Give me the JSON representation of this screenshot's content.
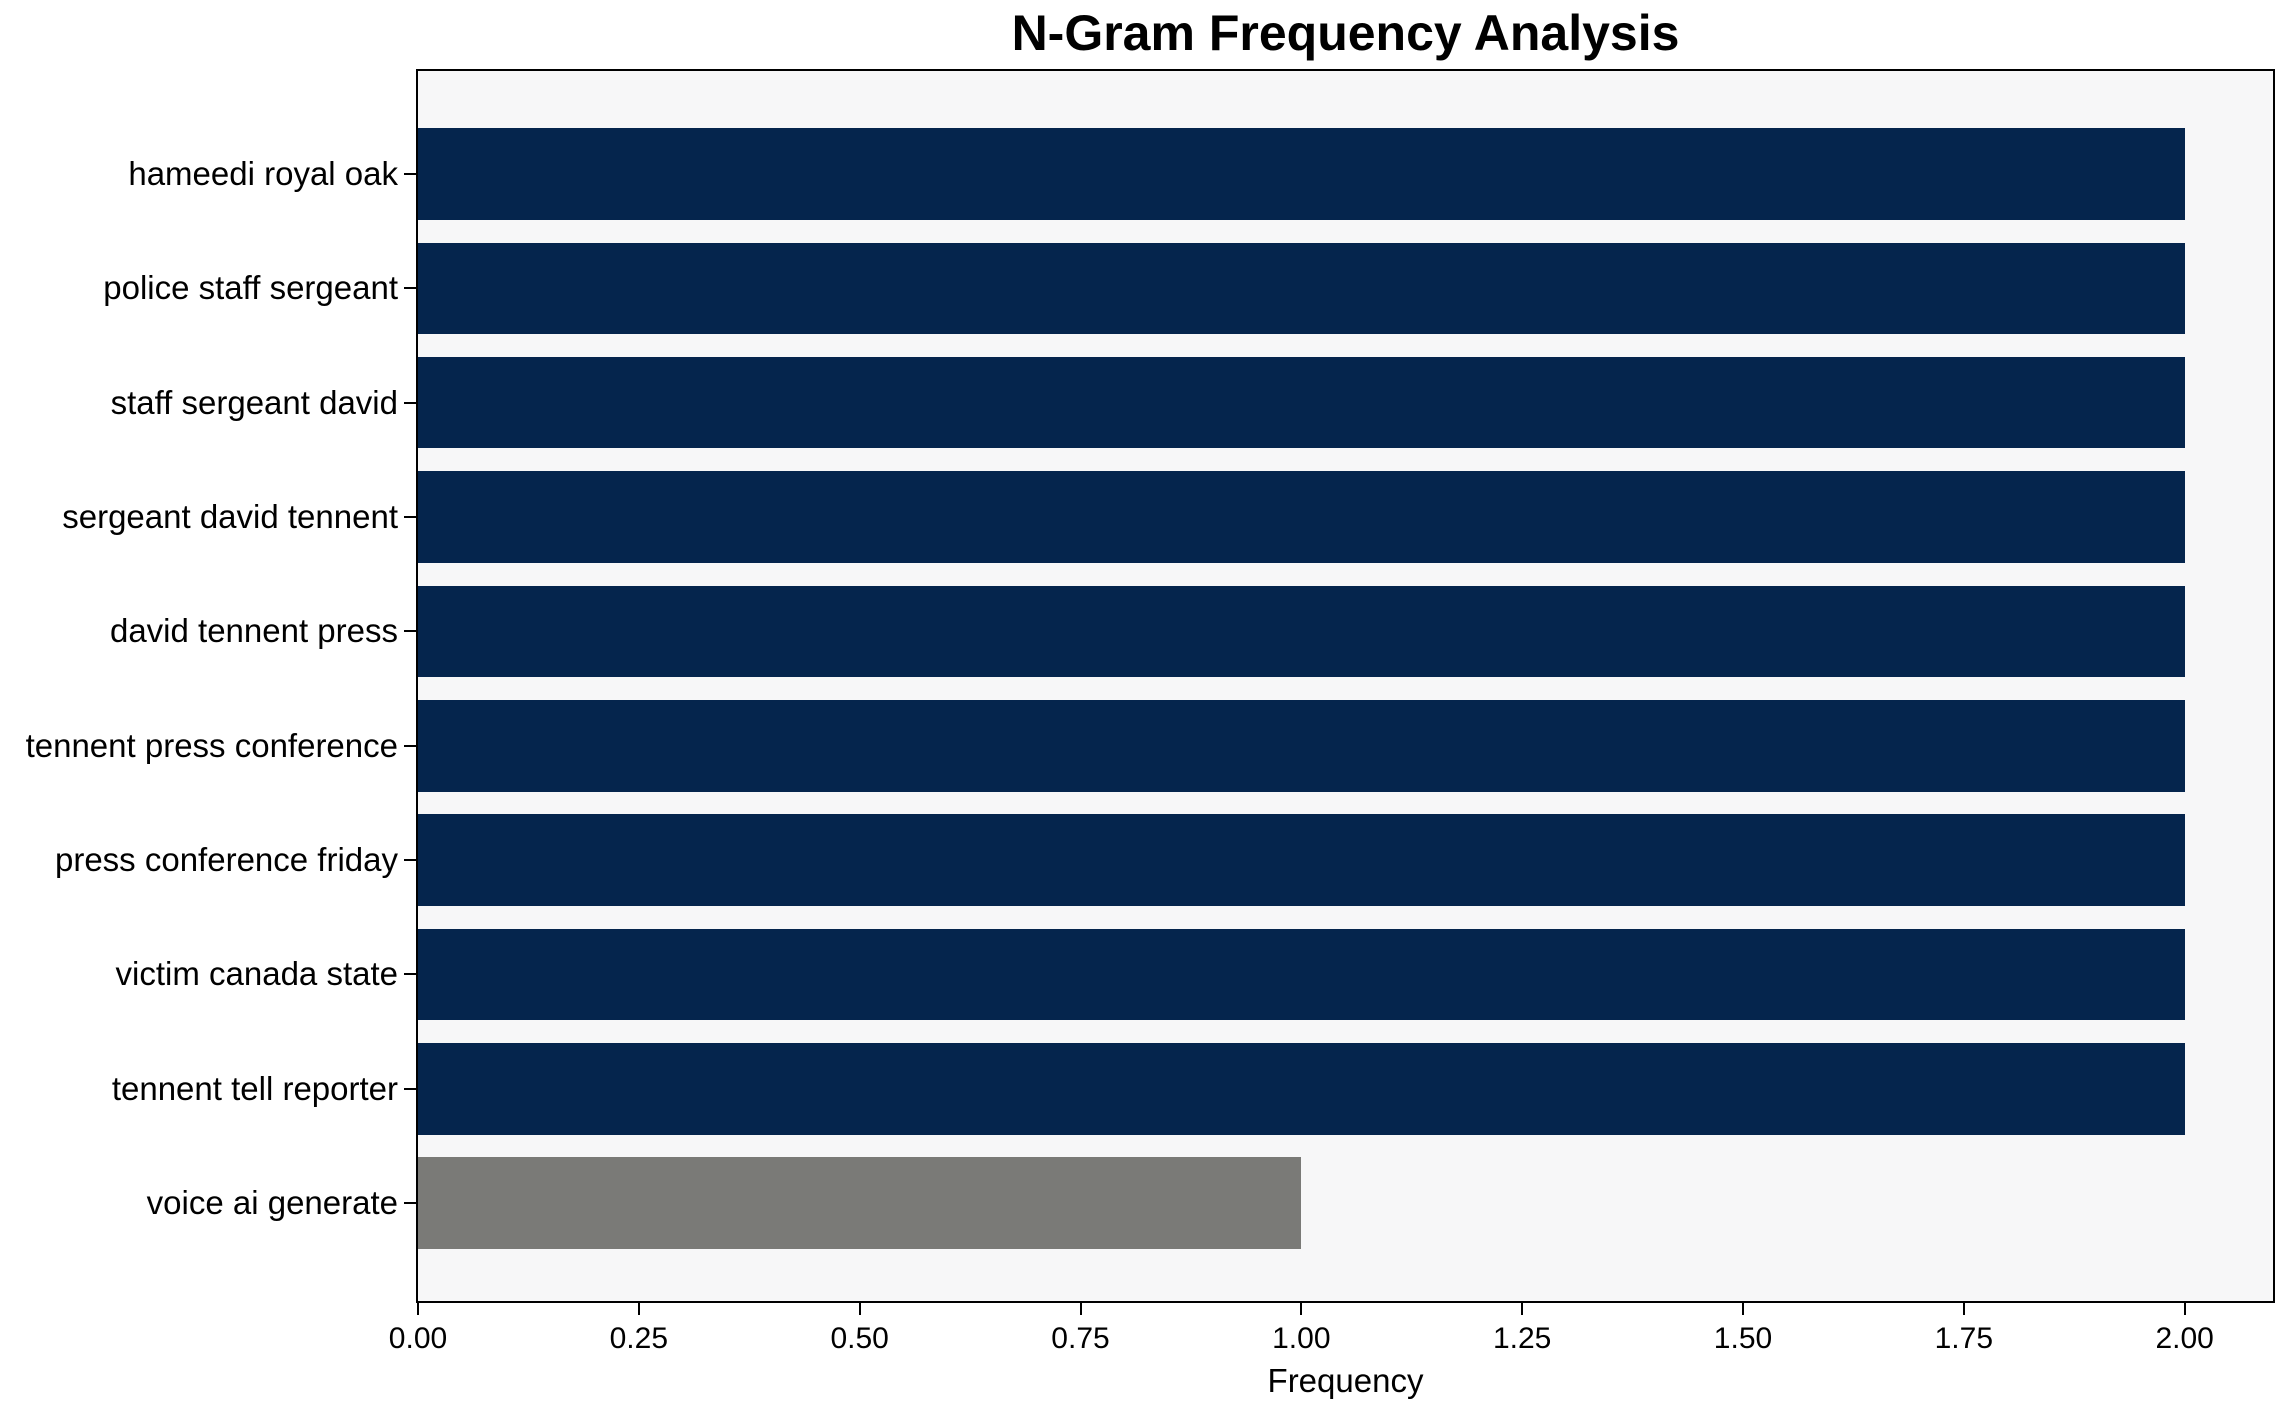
{
  "chart_data": {
    "type": "bar",
    "orientation": "horizontal",
    "title": "N-Gram Frequency Analysis",
    "xlabel": "Frequency",
    "ylabel": "",
    "categories": [
      "hameedi royal oak",
      "police staff sergeant",
      "staff sergeant david",
      "sergeant david tennent",
      "david tennent press",
      "tennent press conference",
      "press conference friday",
      "victim canada state",
      "tennent tell reporter",
      "voice ai generate"
    ],
    "values": [
      2,
      2,
      2,
      2,
      2,
      2,
      2,
      2,
      2,
      1
    ],
    "bar_colors": [
      "#05254d",
      "#05254d",
      "#05254d",
      "#05254d",
      "#05254d",
      "#05254d",
      "#05254d",
      "#05254d",
      "#05254d",
      "#7a7a77"
    ],
    "xlim": [
      0,
      2.1
    ],
    "xticks": [
      {
        "value": 0,
        "label": "0.00"
      },
      {
        "value": 0.25,
        "label": "0.25"
      },
      {
        "value": 0.5,
        "label": "0.50"
      },
      {
        "value": 0.75,
        "label": "0.75"
      },
      {
        "value": 1,
        "label": "1.00"
      },
      {
        "value": 1.25,
        "label": "1.25"
      },
      {
        "value": 1.5,
        "label": "1.50"
      },
      {
        "value": 1.75,
        "label": "1.75"
      },
      {
        "value": 2,
        "label": "2.00"
      }
    ],
    "grid": false,
    "legend": "none",
    "colors": {
      "plot_bg": "#f7f7f8",
      "figure_bg": "#ffffff",
      "spine": "#000000",
      "text": "#000000"
    }
  }
}
